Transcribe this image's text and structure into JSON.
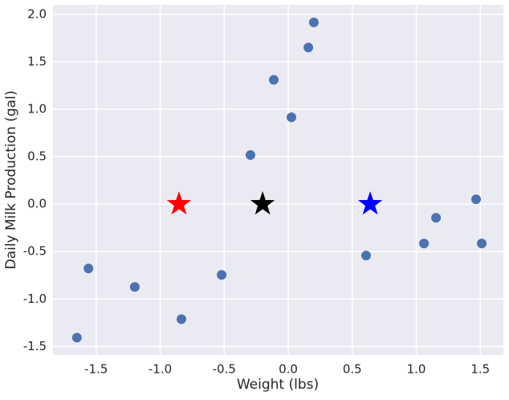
{
  "chart_data": {
    "type": "scatter",
    "xlabel": "Weight (lbs)",
    "ylabel": "Daily Milk Production (gal)",
    "xlim": [
      -1.837,
      1.68
    ],
    "ylim": [
      -1.59,
      2.1
    ],
    "xticks": [
      -1.5,
      -1.0,
      -0.5,
      0.0,
      0.5,
      1.0,
      1.5
    ],
    "yticks": [
      -1.5,
      -1.0,
      -0.5,
      0.0,
      0.5,
      1.0,
      1.5,
      2.0
    ],
    "grid": true,
    "background": "#eaeaf2",
    "series": [
      {
        "marker": "circle",
        "color": "#4c72b0",
        "x": [
          0.2,
          0.157,
          -0.113,
          0.025,
          -0.295,
          -0.52,
          -1.198,
          -1.56,
          -1.65,
          -0.834,
          0.608,
          1.06,
          1.154,
          1.467,
          1.511
        ],
        "values": [
          1.915,
          1.65,
          1.31,
          0.915,
          0.517,
          -0.746,
          -0.873,
          -0.678,
          -1.407,
          -1.212,
          -0.542,
          -0.415,
          -0.144,
          0.051,
          -0.415
        ]
      },
      {
        "marker": "star",
        "colors": [
          "#ff0000",
          "#000000",
          "#0000ff"
        ],
        "x": [
          -0.853,
          -0.2,
          0.64
        ],
        "values": [
          0,
          0,
          0
        ]
      }
    ]
  }
}
